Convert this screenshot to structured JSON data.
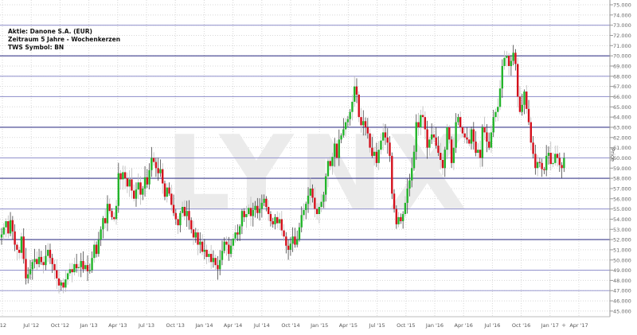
{
  "chart_data": {
    "type": "candlestick",
    "title_lines": [
      "Aktie: Danone S.A. (EUR)",
      "Zeitraum 5 Jahre - Wochenkerzen",
      "TWS Symbol: BN"
    ],
    "watermark": "LYNX",
    "ylabel": "Price",
    "ylim": [
      45,
      75
    ],
    "yticks": [
      "75.000",
      "74.000",
      "73.000",
      "72.000",
      "71.000",
      "70.000",
      "69.000",
      "68.000",
      "67.000",
      "66.000",
      "65.000",
      "64.000",
      "63.000",
      "62.000",
      "61.000",
      "60.000",
      "59.000",
      "58.000",
      "57.000",
      "56.000",
      "55.000",
      "54.000",
      "53.000",
      "52.000",
      "51.000",
      "50.000",
      "49.000",
      "48.000",
      "47.000",
      "46.000",
      "45.000"
    ],
    "xticks": [
      "'12",
      "Jul '12",
      "Oct '12",
      "Jan '13",
      "Apr '13",
      "Jul '13",
      "Oct '13",
      "Jan '14",
      "Apr '14",
      "Jul '14",
      "Oct '14",
      "Jan '15",
      "Apr '15",
      "Jul '15",
      "Oct '15",
      "Jan '16",
      "Apr '16",
      "Jul '16",
      "Oct '16",
      "Jan '17",
      "Apr '17"
    ],
    "grid": true,
    "levels": [
      {
        "price": 73,
        "strong": false
      },
      {
        "price": 70,
        "strong": true
      },
      {
        "price": 68,
        "strong": false
      },
      {
        "price": 66,
        "strong": false
      },
      {
        "price": 63,
        "strong": true
      },
      {
        "price": 60,
        "strong": false
      },
      {
        "price": 58,
        "strong": true
      },
      {
        "price": 55,
        "strong": false
      },
      {
        "price": 52,
        "strong": true
      },
      {
        "price": 49,
        "strong": false
      },
      {
        "price": 47,
        "strong": false
      }
    ],
    "colors": {
      "up": "#22b42a",
      "down": "#d4101c",
      "wick": "#555555",
      "level": "#3c3c8c",
      "level_light": "#9a9ad0",
      "watermark": "#ebebeb"
    },
    "weekly_close": [
      52.5,
      53.2,
      53.8,
      52.6,
      53.9,
      52.8,
      51.5,
      51.0,
      50.7,
      52.3,
      50.1,
      48.2,
      48.6,
      49.1,
      49.8,
      50.1,
      49.6,
      50.3,
      49.8,
      49.5,
      50.4,
      51.0,
      50.2,
      49.6,
      49.0,
      48.2,
      47.5,
      47.8,
      47.3,
      48.1,
      48.7,
      49.1,
      48.8,
      49.6,
      49.2,
      49.3,
      49.9,
      49.1,
      49.5,
      48.9,
      49.0,
      50.2,
      51.5,
      50.6,
      52.0,
      53.0,
      54.1,
      53.6,
      55.5,
      54.8,
      54.2,
      54.0,
      55.3,
      58.5,
      57.9,
      58.6,
      58.0,
      57.2,
      57.9,
      56.8,
      56.0,
      56.9,
      57.6,
      56.4,
      57.0,
      58.1,
      57.4,
      58.8,
      60.0,
      59.6,
      59.0,
      58.5,
      58.9,
      57.5,
      56.2,
      57.1,
      56.5,
      55.4,
      54.6,
      54.0,
      53.4,
      54.6,
      55.2,
      54.3,
      54.8,
      53.9,
      53.0,
      52.2,
      52.7,
      51.5,
      51.8,
      50.8,
      51.0,
      50.3,
      50.6,
      49.8,
      50.2,
      49.5,
      49.1,
      50.0,
      50.9,
      51.8,
      51.5,
      50.6,
      51.4,
      52.1,
      52.7,
      52.5,
      53.3,
      54.8,
      54.2,
      54.5,
      55.1,
      54.3,
      54.9,
      55.3,
      54.6,
      55.0,
      55.6,
      56.0,
      55.2,
      54.5,
      53.8,
      53.5,
      54.2,
      53.6,
      54.0,
      52.9,
      52.3,
      51.4,
      51.0,
      51.6,
      52.3,
      51.5,
      52.0,
      53.2,
      54.4,
      54.9,
      55.5,
      56.3,
      57.0,
      56.1,
      55.0,
      54.5,
      55.2,
      55.7,
      56.4,
      58.2,
      59.7,
      59.2,
      60.1,
      61.4,
      60.0,
      61.8,
      62.2,
      62.8,
      63.5,
      63.8,
      64.5,
      65.5,
      67.0,
      66.2,
      64.0,
      63.2,
      63.6,
      63.0,
      62.4,
      61.0,
      60.2,
      60.6,
      59.5,
      60.8,
      61.7,
      62.5,
      62.0,
      61.5,
      60.2,
      56.5,
      55.0,
      53.5,
      54.2,
      53.8,
      54.5,
      55.6,
      57.0,
      57.8,
      59.0,
      60.6,
      63.5,
      63.0,
      64.2,
      64.0,
      62.8,
      61.0,
      61.8,
      62.3,
      62.0,
      61.2,
      60.5,
      59.8,
      59.0,
      60.8,
      63.0,
      61.8,
      59.5,
      61.0,
      63.5,
      64.0,
      63.0,
      62.4,
      62.0,
      61.8,
      61.4,
      62.8,
      61.6,
      60.5,
      60.8,
      60.0,
      63.0,
      62.5,
      61.6,
      61.0,
      62.5,
      64.0,
      64.5,
      65.0,
      66.8,
      69.0,
      69.8,
      70.0,
      69.0,
      69.5,
      70.3,
      69.2,
      66.0,
      64.5,
      65.2,
      66.5,
      64.8,
      63.5,
      61.5,
      60.4,
      59.0,
      59.6,
      59.5,
      58.9,
      58.8,
      60.2,
      60.5,
      59.4,
      59.5,
      60.4,
      60.0,
      59.3,
      59.0,
      60.0
    ]
  }
}
